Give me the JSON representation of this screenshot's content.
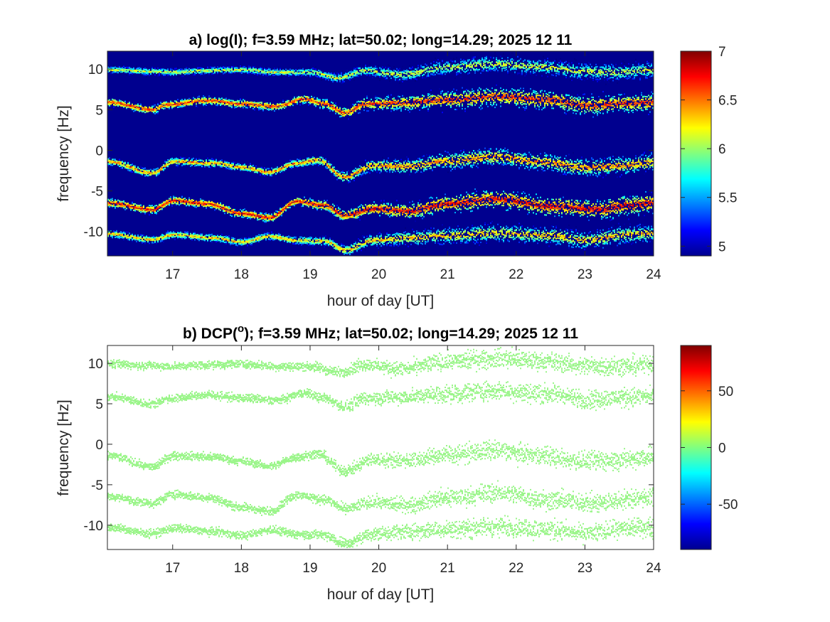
{
  "chart_data": [
    {
      "type": "heatmap",
      "panel_label": "a)",
      "title": "a) log(I); f=3.59 MHz;  lat=50.02; long=14.29; 2025 12 11",
      "xlabel": "hour of day [UT]",
      "ylabel": "frequency [Hz]",
      "xlim": [
        16.05,
        24.0
      ],
      "ylim": [
        -13,
        12.2
      ],
      "xticks": [
        17,
        18,
        19,
        20,
        21,
        22,
        23,
        24
      ],
      "xtick_labels": [
        "17",
        "18",
        "19",
        "20",
        "21",
        "22",
        "23",
        "24"
      ],
      "yticks": [
        10,
        5,
        0,
        -5,
        -10
      ],
      "ytick_labels": [
        "10",
        "5",
        "0",
        "-5",
        "-10"
      ],
      "colormap": "jet",
      "background_value": 4.9,
      "colorbar": {
        "range": [
          4.9,
          7.0
        ],
        "ticks": [
          5,
          5.5,
          6,
          6.5,
          7
        ],
        "tick_labels": [
          "5",
          "5.5",
          "6",
          "6.5",
          "7"
        ]
      },
      "traces": [
        {
          "name": "trace_plus10",
          "x": [
            16.05,
            16.7,
            17.0,
            17.5,
            18.0,
            18.5,
            19.0,
            19.4,
            19.8,
            20.3,
            21.0,
            21.7,
            22.3,
            23.0,
            23.5,
            24.0
          ],
          "y": [
            9.9,
            9.7,
            9.6,
            9.8,
            9.9,
            9.6,
            9.6,
            8.9,
            9.8,
            9.3,
            10.2,
            10.6,
            10.3,
            9.7,
            9.6,
            9.9
          ],
          "intensity": 6.2
        },
        {
          "name": "trace_plus6",
          "x": [
            16.05,
            16.7,
            16.9,
            17.5,
            18.0,
            18.5,
            18.9,
            19.2,
            19.5,
            19.8,
            20.3,
            21.0,
            21.7,
            22.5,
            23.0,
            23.6,
            24.0
          ],
          "y": [
            5.9,
            5.0,
            5.6,
            6.1,
            5.7,
            5.4,
            6.3,
            5.7,
            4.6,
            5.7,
            5.8,
            6.2,
            6.6,
            6.2,
            5.5,
            5.8,
            5.9
          ],
          "intensity": 6.7
        },
        {
          "name": "trace_minus1",
          "x": [
            16.05,
            16.7,
            17.0,
            17.6,
            18.0,
            18.4,
            18.8,
            19.1,
            19.5,
            19.9,
            20.4,
            21.0,
            21.7,
            22.3,
            23.0,
            23.5,
            24.0
          ],
          "y": [
            -1.4,
            -2.8,
            -1.4,
            -1.6,
            -2.1,
            -2.7,
            -1.6,
            -1.2,
            -3.3,
            -1.9,
            -2.0,
            -1.3,
            -0.8,
            -1.4,
            -2.1,
            -1.9,
            -1.5
          ],
          "intensity": 6.5
        },
        {
          "name": "trace_minus6",
          "x": [
            16.05,
            16.7,
            17.0,
            17.5,
            18.0,
            18.4,
            18.8,
            19.2,
            19.5,
            19.9,
            20.4,
            21.0,
            21.7,
            22.5,
            23.2,
            23.6,
            24.0
          ],
          "y": [
            -6.5,
            -7.3,
            -6.2,
            -6.6,
            -7.8,
            -8.3,
            -6.3,
            -6.8,
            -8.0,
            -7.2,
            -7.5,
            -6.6,
            -6.0,
            -6.9,
            -7.3,
            -6.8,
            -6.5
          ],
          "intensity": 6.8
        },
        {
          "name": "trace_minus10",
          "x": [
            16.05,
            16.7,
            17.0,
            17.6,
            18.0,
            18.4,
            18.8,
            19.2,
            19.5,
            19.9,
            20.4,
            21.0,
            21.7,
            22.5,
            23.0,
            23.6,
            24.0
          ],
          "y": [
            -10.3,
            -11.0,
            -10.4,
            -10.8,
            -11.3,
            -10.6,
            -11.1,
            -11.2,
            -12.3,
            -11.1,
            -10.8,
            -10.5,
            -10.2,
            -10.5,
            -11.1,
            -10.4,
            -10.2
          ],
          "intensity": 6.4
        }
      ]
    },
    {
      "type": "heatmap",
      "panel_label": "b)",
      "title": "b) DCP(o); f=3.59 MHz;  lat=50.02; long=14.29; 2025 12 11",
      "title_parts": {
        "before": "b) DCP(",
        "superscript": "o",
        "after": "); f=3.59 MHz;  lat=50.02; long=14.29; 2025 12 11"
      },
      "xlabel": "hour of day [UT]",
      "ylabel": "frequency [Hz]",
      "xlim": [
        16.05,
        24.0
      ],
      "ylim": [
        -13,
        12.2
      ],
      "xticks": [
        17,
        18,
        19,
        20,
        21,
        22,
        23,
        24
      ],
      "xtick_labels": [
        "17",
        "18",
        "19",
        "20",
        "21",
        "22",
        "23",
        "24"
      ],
      "yticks": [
        10,
        5,
        0,
        -5,
        -10
      ],
      "ytick_labels": [
        "10",
        "5",
        "0",
        "-5",
        "-10"
      ],
      "colormap": "jet",
      "background": "#ffffff",
      "trace_value": 12,
      "trace_color": "#9bf58a",
      "colorbar": {
        "range": [
          -90,
          90
        ],
        "ticks": [
          50,
          0,
          -50
        ],
        "tick_labels": [
          "50",
          "0",
          "-50"
        ]
      }
    }
  ]
}
